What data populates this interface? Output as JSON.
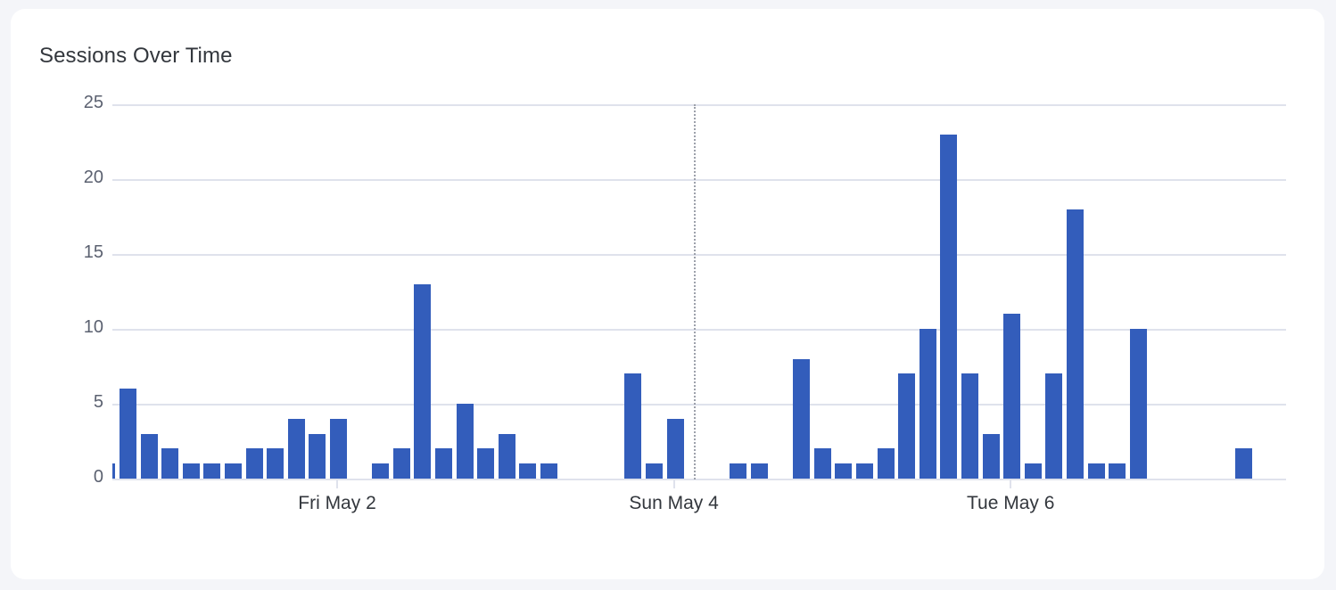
{
  "card": {
    "title": "Sessions Over Time"
  },
  "colors": {
    "bar": "#335dbb",
    "grid": "#dfe2ec",
    "background": "#f4f5f9",
    "card": "#ffffff"
  },
  "chart_data": {
    "type": "bar",
    "title": "Sessions Over Time",
    "xlabel": "",
    "ylabel": "",
    "ylim": [
      0,
      25
    ],
    "yticks": [
      0,
      5,
      10,
      15,
      20,
      25
    ],
    "grid": true,
    "legend": null,
    "bin": "3 hours",
    "xtick_labels": [
      {
        "label": "Fri May 2",
        "index": 11
      },
      {
        "label": "Sun May 4",
        "index": 27
      },
      {
        "label": "Tue May 6",
        "index": 43
      }
    ],
    "hover_crosshair_index": 28,
    "values": [
      1,
      6,
      3,
      2,
      1,
      1,
      1,
      2,
      2,
      4,
      3,
      4,
      0,
      1,
      2,
      13,
      2,
      5,
      2,
      3,
      1,
      1,
      0,
      0,
      0,
      7,
      1,
      4,
      0,
      0,
      1,
      1,
      0,
      8,
      2,
      1,
      1,
      2,
      7,
      10,
      23,
      7,
      3,
      11,
      1,
      7,
      18,
      1,
      1,
      10,
      0,
      0,
      0,
      0,
      2,
      0
    ]
  }
}
